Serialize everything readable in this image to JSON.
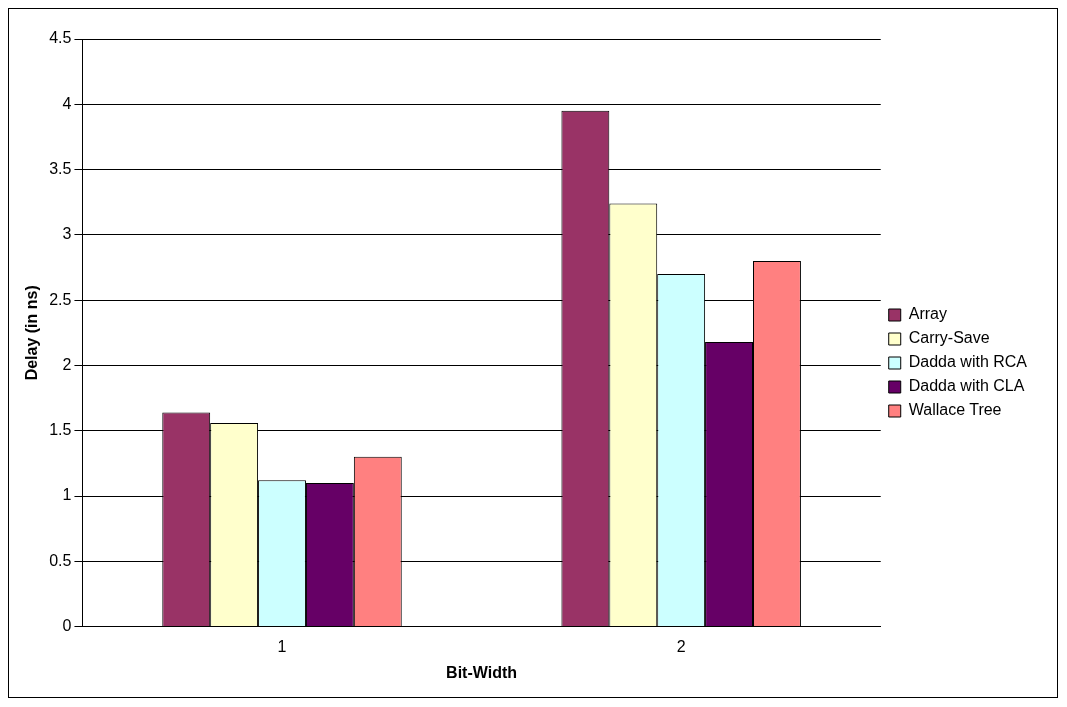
{
  "chart_data": {
    "type": "bar",
    "xlabel": "Bit-Width",
    "ylabel": "Delay (in ns)",
    "categories": [
      "1",
      "2"
    ],
    "series": [
      {
        "name": "Array",
        "color": "#993366",
        "values": [
          1.64,
          3.95
        ]
      },
      {
        "name": "Carry-Save",
        "color": "#ffffcc",
        "values": [
          1.56,
          3.24
        ]
      },
      {
        "name": "Dadda with RCA",
        "color": "#ccffff",
        "values": [
          1.12,
          2.7
        ]
      },
      {
        "name": "Dadda with CLA",
        "color": "#660066",
        "values": [
          1.1,
          2.18
        ]
      },
      {
        "name": "Wallace Tree",
        "color": "#ff8080",
        "values": [
          1.3,
          2.8
        ]
      }
    ],
    "ylim": [
      0,
      4.5
    ],
    "yticks": [
      0,
      0.5,
      1,
      1.5,
      2,
      2.5,
      3,
      3.5,
      4,
      4.5
    ],
    "grid": "y",
    "legend": "right"
  }
}
